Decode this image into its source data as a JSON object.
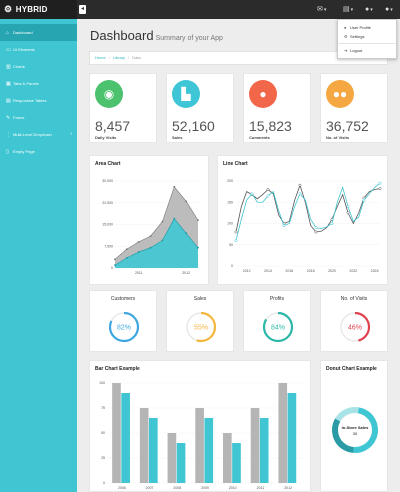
{
  "brand": {
    "name": "HYBRID"
  },
  "topbar": {
    "icons": [
      {
        "name": "envelope-icon",
        "glyph": "✉"
      },
      {
        "name": "list-icon",
        "glyph": "▤"
      },
      {
        "name": "bell-icon",
        "glyph": "🔔"
      },
      {
        "name": "user-icon",
        "glyph": "👤"
      }
    ]
  },
  "user_menu": {
    "items": [
      {
        "label": "User Profile",
        "icon": "👤",
        "name": "user-profile-icon"
      },
      {
        "label": "Settings",
        "icon": "⚙",
        "name": "settings-icon"
      },
      {
        "label": "Logout",
        "icon": "➜",
        "name": "logout-icon"
      }
    ]
  },
  "sidebar": {
    "items": [
      {
        "label": "Dashboard",
        "icon": "⌂",
        "active": true
      },
      {
        "label": "UI Elements",
        "icon": "▭"
      },
      {
        "label": "Charts",
        "icon": "▥"
      },
      {
        "label": "Tabs & Panels",
        "icon": "▦"
      },
      {
        "label": "Responsive Tables",
        "icon": "▤"
      },
      {
        "label": "Forms",
        "icon": "✎"
      },
      {
        "label": "Multi-Level Dropdown",
        "icon": "⋮",
        "arrow": "‹"
      },
      {
        "label": "Empty Page",
        "icon": "▯"
      }
    ]
  },
  "page": {
    "title": "Dashboard",
    "subtitle": "Summary of your App"
  },
  "breadcrumb": {
    "home": "Home",
    "library": "Library",
    "current": "Data"
  },
  "stats": [
    {
      "value": "8,457",
      "label": "Daily Visits",
      "color": "#4cc26e",
      "icon": "👁",
      "icon_name": "eye-icon"
    },
    {
      "value": "52,160",
      "label": "Sales",
      "color": "#3ec6d6",
      "icon": "🛒",
      "icon_name": "cart-icon"
    },
    {
      "value": "15,823",
      "label": "Comments",
      "color": "#f2664a",
      "icon": "💬",
      "icon_name": "comments-icon"
    },
    {
      "value": "36,752",
      "label": "No. of Visits",
      "color": "#f5a742",
      "icon": "👥",
      "icon_name": "users-icon"
    }
  ],
  "gauges": [
    {
      "title": "Customers",
      "percent": 82,
      "label": "82%",
      "color": "#3ea7e0"
    },
    {
      "title": "Sales",
      "percent": 55,
      "label": "55%",
      "color": "#f4b63f"
    },
    {
      "title": "Profits",
      "percent": 84,
      "label": "84%",
      "color": "#2bb7a8"
    },
    {
      "title": "No. of Visits",
      "percent": 46,
      "label": "46%",
      "color": "#e0434f"
    }
  ],
  "colors": {
    "accent": "#3fc6d2",
    "accent_dark": "#27a6b1",
    "gray": "#b5b5b5",
    "dark_line": "#555555"
  },
  "chart_data": [
    {
      "type": "area",
      "title": "Area Chart",
      "x": [
        2010.5,
        2010.75,
        2011,
        2011.25,
        2011.5,
        2011.75,
        2012,
        2012.25
      ],
      "series": [
        {
          "values": [
            3000,
            6500,
            9000,
            11000,
            16000,
            28000,
            23000,
            16500
          ]
        },
        {
          "values": [
            1000,
            3500,
            5500,
            7000,
            9500,
            17000,
            12000,
            7000
          ]
        }
      ],
      "ylim": [
        0,
        30000
      ],
      "yticks": [
        "0",
        "7,500",
        "15,000",
        "22,500",
        "30,000"
      ],
      "xticks": [
        "2011",
        "2012"
      ]
    },
    {
      "type": "line",
      "title": "Line Chart",
      "x": [
        2011,
        2011.5,
        2012,
        2012.5,
        2013,
        2013.5,
        2014,
        2014.5,
        2015,
        2015.5,
        2016,
        2016.5,
        2017,
        2017.5,
        2018,
        2018.5,
        2019,
        2019.5,
        2020,
        2020.5,
        2021,
        2021.5,
        2022,
        2022.5,
        2023,
        2023.5,
        2024,
        2024.5
      ],
      "series": [
        {
          "values": [
            80,
            140,
            175,
            168,
            158,
            168,
            180,
            170,
            120,
            100,
            105,
            155,
            190,
            150,
            95,
            80,
            82,
            90,
            110,
            140,
            168,
            125,
            100,
            125,
            160,
            175,
            180,
            182
          ]
        },
        {
          "values": [
            60,
            110,
            155,
            170,
            150,
            150,
            165,
            175,
            130,
            95,
            100,
            140,
            170,
            155,
            110,
            90,
            88,
            92,
            100,
            150,
            185,
            140,
            105,
            115,
            155,
            170,
            185,
            195
          ]
        }
      ],
      "ylim": [
        0,
        200
      ],
      "yticks": [
        "0",
        "50",
        "100",
        "150",
        "200"
      ],
      "xticks": [
        "2012",
        "2014",
        "2016",
        "2018",
        "2020",
        "2022",
        "2024"
      ]
    },
    {
      "type": "bar",
      "title": "Bar Chart Example",
      "categories": [
        "2006",
        "2007",
        "2008",
        "2009",
        "2010",
        "2011",
        "2012"
      ],
      "series": [
        {
          "values": [
            100,
            75,
            50,
            75,
            50,
            75,
            100
          ]
        },
        {
          "values": [
            90,
            65,
            40,
            65,
            40,
            65,
            90
          ]
        }
      ],
      "ylim": [
        0,
        100
      ],
      "yticks": [
        "0",
        "25",
        "50",
        "75",
        "100"
      ]
    },
    {
      "type": "pie",
      "title": "Donut Chart Example",
      "center_label": "In-Store Sales",
      "center_value": "30",
      "slices": [
        {
          "value": 12
        },
        {
          "value": 30
        },
        {
          "value": 20
        }
      ]
    }
  ]
}
